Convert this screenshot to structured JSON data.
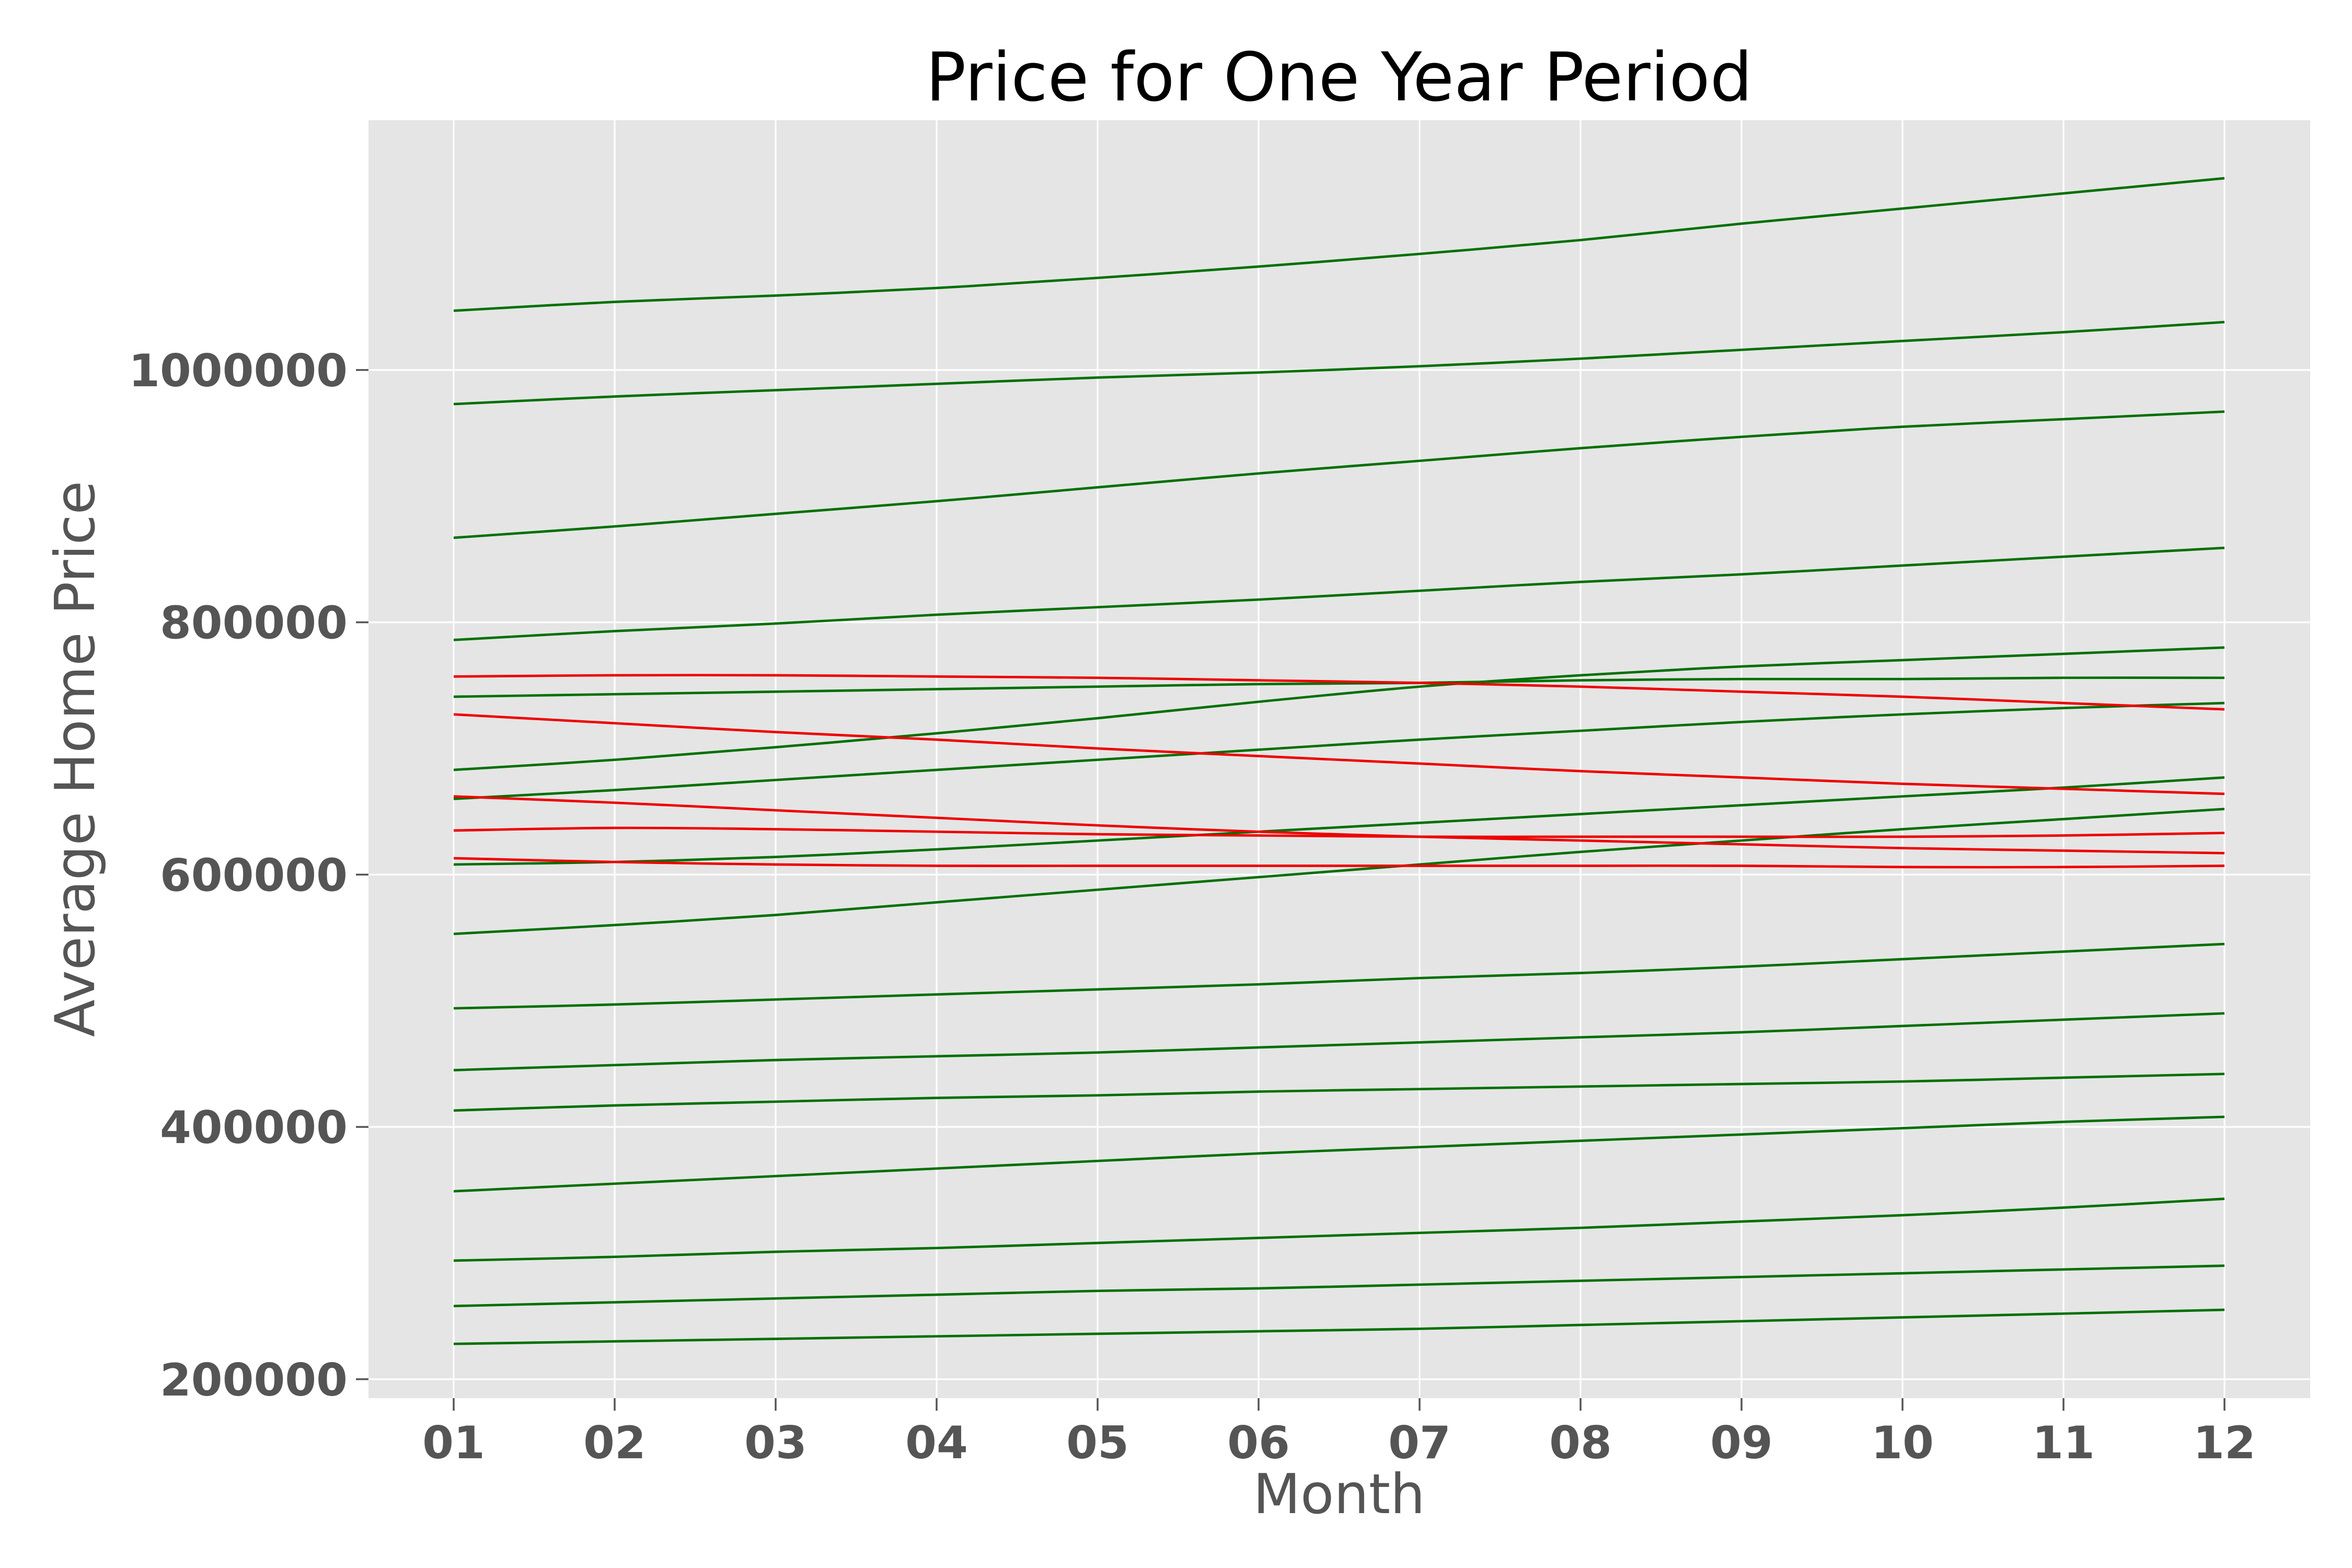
{
  "chart_data": {
    "type": "line",
    "title": "Price for One Year Period",
    "xlabel": "Month",
    "ylabel": "Average Home Price",
    "categories": [
      "01",
      "02",
      "03",
      "04",
      "05",
      "06",
      "07",
      "08",
      "09",
      "10",
      "11",
      "12"
    ],
    "yticks": [
      200000,
      400000,
      600000,
      800000,
      1000000
    ],
    "ytick_labels": [
      "200000",
      "400000",
      "600000",
      "800000",
      "1000000"
    ],
    "ylim": [
      185000,
      1198000
    ],
    "grid": true,
    "legend": "none",
    "background": "#e5e5e5",
    "colors": {
      "rising": "#007000",
      "falling": "#ee0000"
    },
    "series": [
      {
        "trend": "rising",
        "values": [
          1047000,
          1054000,
          1059000,
          1065000,
          1073000,
          1082000,
          1092000,
          1103000,
          1116000,
          1128000,
          1140000,
          1152000
        ]
      },
      {
        "trend": "rising",
        "values": [
          973000,
          979000,
          984000,
          989000,
          994000,
          998000,
          1003000,
          1009000,
          1016000,
          1023000,
          1030000,
          1038000
        ]
      },
      {
        "trend": "rising",
        "values": [
          867000,
          876000,
          886000,
          896000,
          907000,
          918000,
          928000,
          938000,
          947000,
          955000,
          961000,
          967000
        ]
      },
      {
        "trend": "rising",
        "values": [
          786000,
          793000,
          799000,
          806000,
          812000,
          818000,
          825000,
          832000,
          838000,
          845000,
          852000,
          859000
        ]
      },
      {
        "trend": "rising",
        "values": [
          741000,
          743000,
          745000,
          747000,
          749000,
          751000,
          752000,
          754000,
          755000,
          755000,
          756000,
          756000
        ]
      },
      {
        "trend": "rising",
        "values": [
          683000,
          691000,
          701000,
          712000,
          724000,
          737000,
          749000,
          758000,
          765000,
          770000,
          775000,
          780000
        ]
      },
      {
        "trend": "rising",
        "values": [
          660000,
          667000,
          675000,
          683000,
          691000,
          699000,
          707000,
          714000,
          721000,
          727000,
          732000,
          736000
        ]
      },
      {
        "trend": "rising",
        "values": [
          608000,
          610000,
          614000,
          620000,
          627000,
          634000,
          641000,
          648000,
          655000,
          662000,
          669000,
          677000
        ]
      },
      {
        "trend": "rising",
        "values": [
          553000,
          560000,
          568000,
          578000,
          588000,
          598000,
          608000,
          618000,
          627000,
          636000,
          644000,
          652000
        ]
      },
      {
        "trend": "rising",
        "values": [
          494000,
          497000,
          501000,
          505000,
          509000,
          513000,
          518000,
          522000,
          527000,
          533000,
          539000,
          545000
        ]
      },
      {
        "trend": "rising",
        "values": [
          445000,
          449000,
          453000,
          456000,
          459000,
          463000,
          467000,
          471000,
          475000,
          480000,
          485000,
          490000
        ]
      },
      {
        "trend": "rising",
        "values": [
          413000,
          417000,
          420000,
          423000,
          425000,
          428000,
          430000,
          432000,
          434000,
          436000,
          439000,
          442000
        ]
      },
      {
        "trend": "rising",
        "values": [
          349000,
          355000,
          361000,
          367000,
          373000,
          379000,
          384000,
          389000,
          394000,
          399000,
          404000,
          408000
        ]
      },
      {
        "trend": "rising",
        "values": [
          294000,
          297000,
          301000,
          304000,
          308000,
          312000,
          316000,
          320000,
          325000,
          330000,
          336000,
          343000
        ]
      },
      {
        "trend": "rising",
        "values": [
          258000,
          261000,
          264000,
          267000,
          270000,
          272000,
          275000,
          278000,
          281000,
          284000,
          287000,
          290000
        ]
      },
      {
        "trend": "rising",
        "values": [
          228000,
          230000,
          232000,
          234000,
          236000,
          238000,
          240000,
          243000,
          246000,
          249000,
          252000,
          255000
        ]
      },
      {
        "trend": "falling",
        "values": [
          757000,
          758000,
          758000,
          757000,
          756000,
          754000,
          752000,
          749000,
          745000,
          741000,
          736000,
          731000
        ]
      },
      {
        "trend": "falling",
        "values": [
          727000,
          720000,
          713000,
          707000,
          700000,
          694000,
          688000,
          682000,
          677000,
          672000,
          668000,
          664000
        ]
      },
      {
        "trend": "falling",
        "values": [
          662000,
          657000,
          651000,
          645000,
          639000,
          634000,
          630000,
          627000,
          624000,
          621000,
          619000,
          617000
        ]
      },
      {
        "trend": "falling",
        "values": [
          635000,
          637000,
          636000,
          634000,
          632000,
          631000,
          630000,
          630000,
          630000,
          630000,
          631000,
          633000
        ]
      },
      {
        "trend": "falling",
        "values": [
          613000,
          610000,
          608000,
          607000,
          607000,
          607000,
          607000,
          607000,
          607000,
          606000,
          606000,
          607000
        ]
      }
    ]
  }
}
